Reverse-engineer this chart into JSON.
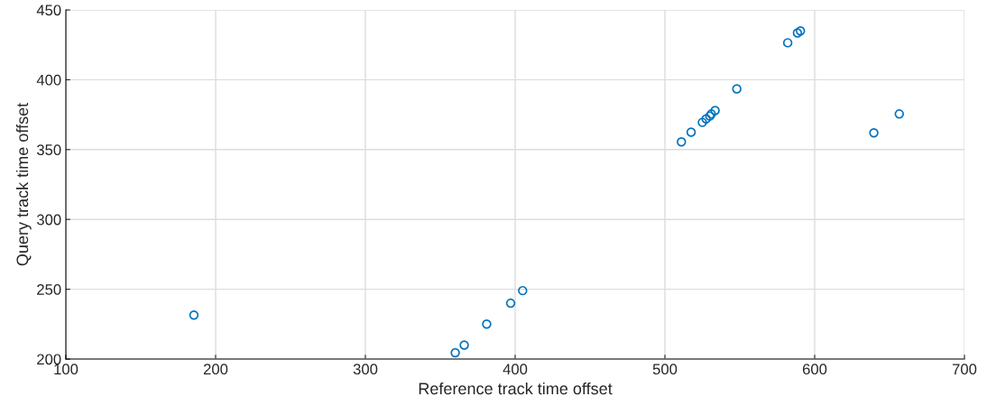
{
  "chart_data": {
    "type": "scatter",
    "xlabel": "Reference track time offset",
    "ylabel": "Query track time offset",
    "xlim": [
      100,
      700
    ],
    "ylim": [
      200,
      450
    ],
    "xticks": [
      100,
      200,
      300,
      400,
      500,
      600,
      700
    ],
    "yticks": [
      200,
      250,
      300,
      350,
      400,
      450
    ],
    "grid": true,
    "marker": "circle",
    "series": [
      {
        "color": "#0072bd",
        "x": [
          185.5,
          360,
          366,
          381,
          397,
          405,
          511,
          517.5,
          525,
          527.5,
          530,
          531,
          533.5,
          548,
          582,
          588.5,
          590.5,
          639.5,
          656.5
        ],
        "values": [
          231.5,
          204.5,
          210,
          225,
          240,
          249,
          355.5,
          362.5,
          369.5,
          372,
          374,
          375.5,
          378,
          393.5,
          426.5,
          433.5,
          435,
          362,
          375.5
        ]
      }
    ]
  }
}
